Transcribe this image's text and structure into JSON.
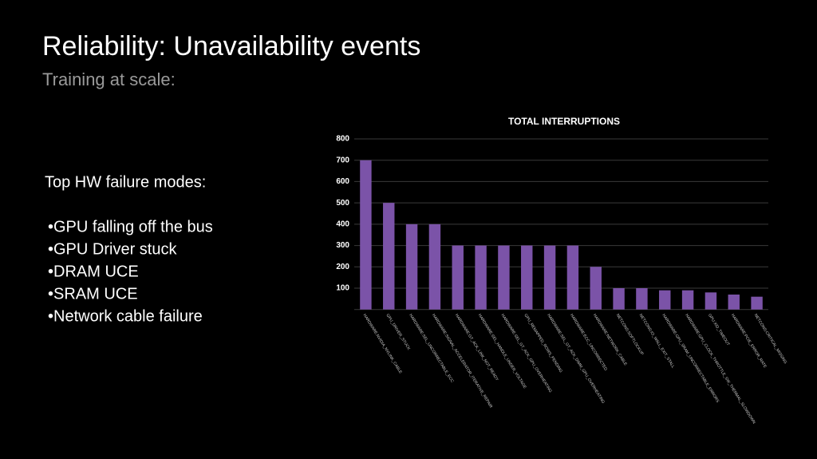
{
  "slide": {
    "title": "Reliability:  Unavailability events",
    "subtitle": "Training at scale:",
    "list_heading": "Top HW failure modes:",
    "items": [
      "•GPU falling off the bus",
      "•GPU Driver stuck",
      "•DRAM UCE",
      "•SRAM UCE",
      "•Network cable failure"
    ]
  },
  "chart_data": {
    "type": "bar",
    "title": "TOTAL INTERRUPTIONS",
    "categories": [
      "HARDWARE:NVIDIA_NVLINK_CABLE",
      "GPU_DRIVER_STUCK",
      "HARDWARE:SEL_UNCORRECTABLE_ECC",
      "HARDWARE:SIGNAL_ACCELERATOR_ITERATIVE_REPAIR",
      "HARDWARE:GT_ACK_LINK_NOT_READY",
      "HARDWARE:SEL_HANDLE_UNDER_VOLTAGE",
      "HARDWARE:SEL_GT_ACK_GPU_OVERHEATING",
      "GPU_REMAPPED_ROWS_PENDING",
      "HARDWARE:SEL_GT_ACK_DIMM_GPU_OVERHEATING",
      "HARDWARE:ECC_UNCORRECTED",
      "HARDWARE:NETWORK_CABLE",
      "NETCONS:SOFTLOCKUP",
      "NETCONS:IO_WALL_EXIT_STALL",
      "HARDWARE:GPU_SRAM_UNCORRECTABLE_ERRORS",
      "HARDWARE:GPU_CLOCK_THROTTLE_SW_THERMAL_SLOWDOWN",
      "GPU:XID_TIMEOUT",
      "HARDWARE:PCIE_ERROR_RATE",
      "NETCONS:CRITICAL_MISSING"
    ],
    "values": [
      700,
      500,
      400,
      400,
      300,
      300,
      300,
      300,
      300,
      300,
      200,
      100,
      100,
      90,
      90,
      80,
      70,
      60
    ],
    "color": "#7b53a8",
    "ylim": [
      0,
      800
    ],
    "yticks": [
      100,
      200,
      300,
      400,
      500,
      600,
      700,
      800
    ],
    "grid": true
  }
}
